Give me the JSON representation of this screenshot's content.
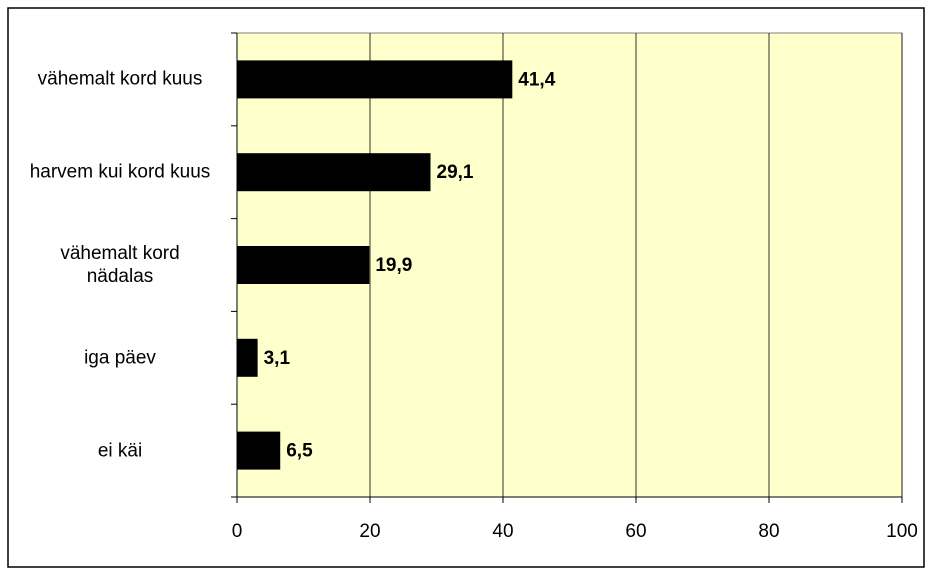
{
  "chart_data": {
    "type": "bar",
    "orientation": "horizontal",
    "categories": [
      "vähemalt kord kuus",
      "harvem kui kord kuus",
      "vähemalt kord nädalas",
      "iga päev",
      "ei käi"
    ],
    "values": [
      41.4,
      29.1,
      19.9,
      3.1,
      6.5
    ],
    "value_labels": [
      "41,4",
      "29,1",
      "19,9",
      "3,1",
      "6,5"
    ],
    "color": "#000000",
    "xlim": [
      0,
      100
    ],
    "xticks": [
      0,
      20,
      40,
      60,
      80,
      100
    ],
    "grid": true
  }
}
